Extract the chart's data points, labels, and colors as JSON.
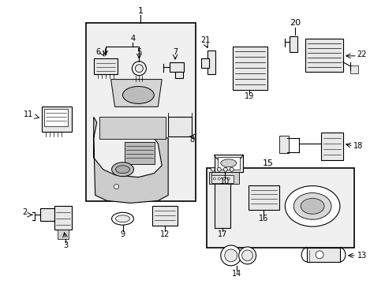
{
  "bg_color": "#ffffff",
  "line_color": "#000000",
  "part_fill": "#e8e8e8",
  "box1_fill": "#eeeeee",
  "box15_fill": "#eeeeee",
  "figsize": [
    4.89,
    3.6
  ],
  "dpi": 100
}
